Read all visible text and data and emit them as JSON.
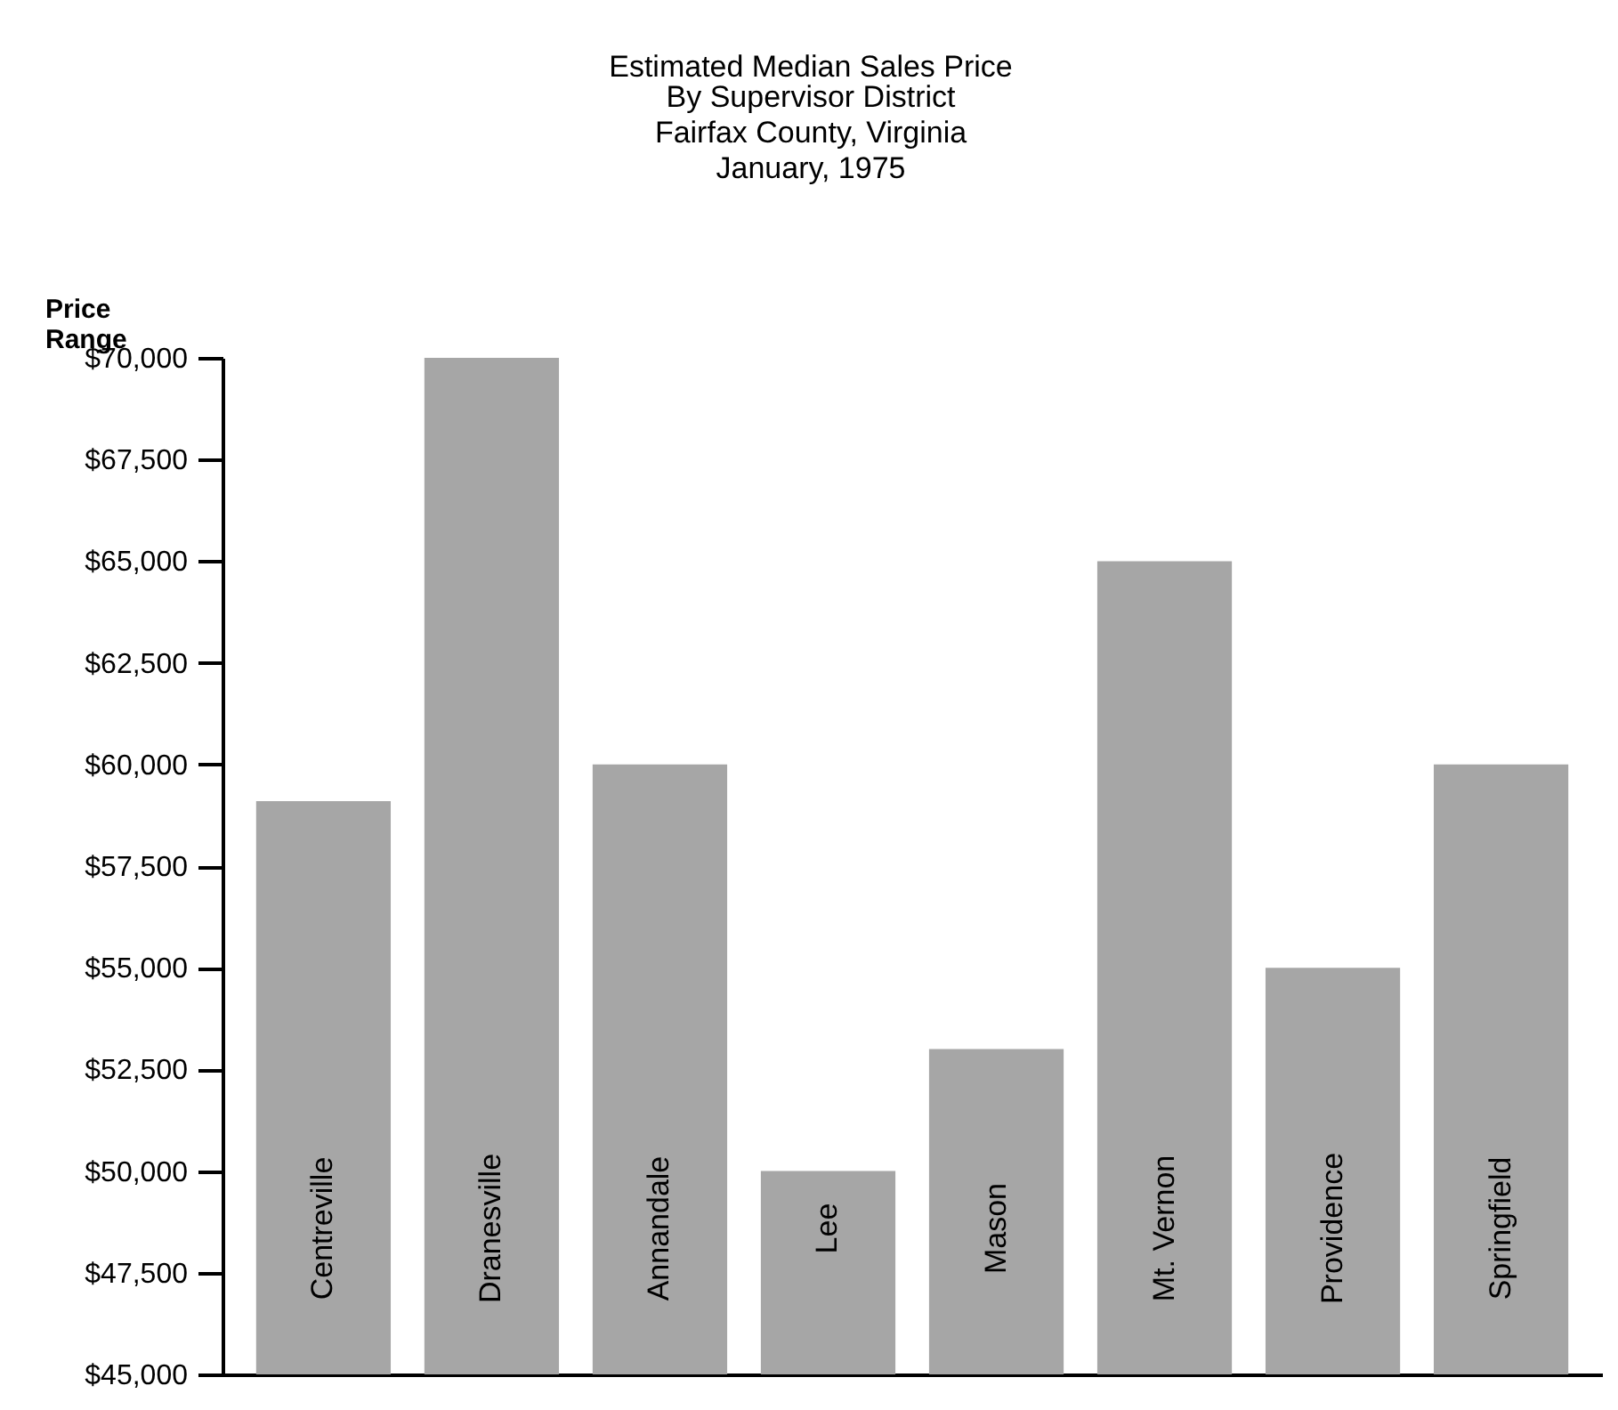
{
  "chart_data": {
    "type": "bar",
    "title": "Estimated Median Sales Price",
    "subtitle": "By Supervisor District\nFairfax County, Virginia\nJanuary, 1975",
    "ylabel": "Price Range",
    "categories": [
      "Centreville",
      "Dranesville",
      "Annandale",
      "Lee",
      "Mason",
      "Mt. Vernon",
      "Providence",
      "Springfield"
    ],
    "values": [
      59100,
      70000,
      60000,
      50000,
      53000,
      65000,
      55000,
      60000
    ],
    "color": "#a6a6a6",
    "ylim": [
      45000,
      70000
    ],
    "yticks": [
      {
        "value": 45000,
        "label": "$45,000"
      },
      {
        "value": 47500,
        "label": "$47,500"
      },
      {
        "value": 50000,
        "label": "$50,000"
      },
      {
        "value": 52500,
        "label": "$52,500"
      },
      {
        "value": 55000,
        "label": "$55,000"
      },
      {
        "value": 57500,
        "label": "$57,500"
      },
      {
        "value": 60000,
        "label": "$60,000"
      },
      {
        "value": 62500,
        "label": "$62,500"
      },
      {
        "value": 65000,
        "label": "$65,000"
      },
      {
        "value": 67500,
        "label": "$67,500"
      },
      {
        "value": 70000,
        "label": "$70,000"
      }
    ],
    "grid": false,
    "tick_labels": "y"
  }
}
